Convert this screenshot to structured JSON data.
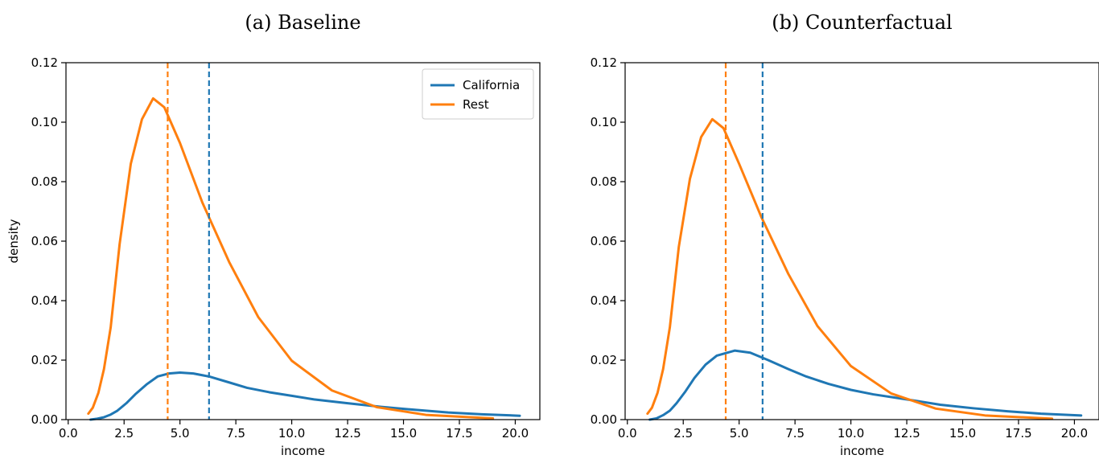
{
  "chart_data": [
    {
      "type": "line",
      "title": "(a) Baseline",
      "xlabel": "income",
      "ylabel": "density",
      "xlim": [
        -0.1,
        21.1
      ],
      "ylim": [
        0,
        0.12
      ],
      "xticks": [
        "0.0",
        "2.5",
        "5.0",
        "7.5",
        "10.0",
        "12.5",
        "15.0",
        "17.5",
        "20.0"
      ],
      "yticks": [
        "0.00",
        "0.02",
        "0.04",
        "0.06",
        "0.08",
        "0.10",
        "0.12"
      ],
      "grid": false,
      "legend": "top-right",
      "series": [
        {
          "name": "California",
          "color": "#1f77b4",
          "x": [
            1.0,
            1.3,
            1.6,
            1.9,
            2.2,
            2.6,
            3.0,
            3.5,
            4.0,
            4.5,
            5.0,
            5.6,
            6.3,
            7.2,
            8.0,
            9.0,
            10.0,
            11.0,
            12.5,
            14.0,
            15.5,
            17.0,
            18.5,
            20.2
          ],
          "y": [
            0.0,
            0.0003,
            0.0008,
            0.0017,
            0.003,
            0.0055,
            0.0085,
            0.0118,
            0.0145,
            0.0155,
            0.0158,
            0.0155,
            0.0145,
            0.0125,
            0.0107,
            0.0092,
            0.008,
            0.0068,
            0.0055,
            0.0043,
            0.0033,
            0.0024,
            0.0018,
            0.0013
          ]
        },
        {
          "name": "Rest",
          "color": "#ff7f0e",
          "x": [
            0.9,
            1.1,
            1.35,
            1.6,
            1.9,
            2.3,
            2.8,
            3.3,
            3.8,
            4.3,
            5.0,
            6.0,
            7.2,
            8.5,
            10.0,
            11.8,
            13.8,
            16.0,
            19.0
          ],
          "y": [
            0.002,
            0.004,
            0.009,
            0.017,
            0.031,
            0.059,
            0.086,
            0.101,
            0.108,
            0.105,
            0.093,
            0.073,
            0.053,
            0.0345,
            0.0198,
            0.0098,
            0.0042,
            0.0016,
            0.0004
          ]
        }
      ],
      "vlines": [
        {
          "series": "Rest",
          "x": 4.45,
          "color": "#ff7f0e"
        },
        {
          "series": "California",
          "x": 6.3,
          "color": "#1f77b4"
        }
      ]
    },
    {
      "type": "line",
      "title": "(b) Counterfactual",
      "xlabel": "income",
      "ylabel": "",
      "xlim": [
        -0.1,
        21.1
      ],
      "ylim": [
        0,
        0.12
      ],
      "xticks": [
        "0.0",
        "2.5",
        "5.0",
        "7.5",
        "10.0",
        "12.5",
        "15.0",
        "17.5",
        "20.0"
      ],
      "yticks": [
        "0.00",
        "0.02",
        "0.04",
        "0.06",
        "0.08",
        "0.10",
        "0.12"
      ],
      "grid": false,
      "series": [
        {
          "name": "California",
          "color": "#1f77b4",
          "x": [
            1.0,
            1.3,
            1.6,
            1.9,
            2.2,
            2.6,
            3.0,
            3.5,
            4.0,
            4.8,
            5.5,
            6.3,
            7.2,
            8.0,
            9.0,
            10.0,
            11.0,
            12.5,
            14.0,
            15.5,
            17.0,
            18.5,
            20.3
          ],
          "y": [
            0.0,
            0.0004,
            0.0015,
            0.003,
            0.0055,
            0.0095,
            0.014,
            0.0185,
            0.0215,
            0.0232,
            0.0225,
            0.02,
            0.017,
            0.0145,
            0.012,
            0.01,
            0.0085,
            0.0068,
            0.005,
            0.0038,
            0.0028,
            0.002,
            0.0014
          ]
        },
        {
          "name": "Rest",
          "color": "#ff7f0e",
          "x": [
            0.9,
            1.1,
            1.35,
            1.6,
            1.9,
            2.3,
            2.8,
            3.3,
            3.8,
            4.3,
            5.0,
            6.0,
            7.2,
            8.5,
            10.0,
            11.8,
            13.8,
            16.0,
            19.0
          ],
          "y": [
            0.002,
            0.004,
            0.009,
            0.017,
            0.031,
            0.058,
            0.081,
            0.095,
            0.101,
            0.098,
            0.086,
            0.068,
            0.049,
            0.0315,
            0.018,
            0.0088,
            0.0037,
            0.0014,
            0.0003
          ]
        }
      ],
      "vlines": [
        {
          "series": "Rest",
          "x": 4.4,
          "color": "#ff7f0e"
        },
        {
          "series": "California",
          "x": 6.05,
          "color": "#1f77b4"
        }
      ]
    }
  ]
}
